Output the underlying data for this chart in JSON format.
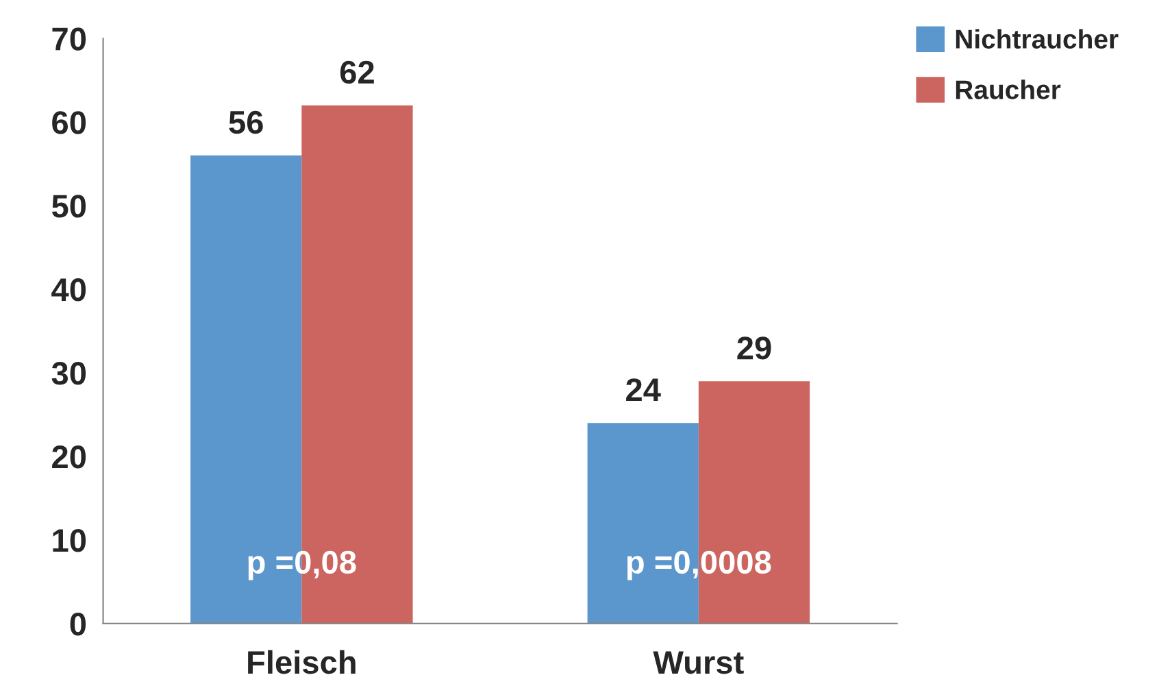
{
  "chart_data": {
    "type": "bar",
    "categories": [
      "Fleisch",
      "Wurst"
    ],
    "series": [
      {
        "name": "Nichtraucher",
        "color": "#5b96cc",
        "values": [
          56,
          24
        ]
      },
      {
        "name": "Raucher",
        "color": "#cc6560",
        "values": [
          62,
          29
        ]
      }
    ],
    "ylim": [
      0,
      70
    ],
    "yticks": [
      0,
      10,
      20,
      30,
      40,
      50,
      60,
      70
    ],
    "data_labels": true,
    "grid": false,
    "legend": "top right",
    "annotations": [
      {
        "text": "p =0,08",
        "x": "Fleisch",
        "y": 7
      },
      {
        "text": "p =0,0008",
        "x": "Wurst",
        "y": 7
      }
    ]
  }
}
